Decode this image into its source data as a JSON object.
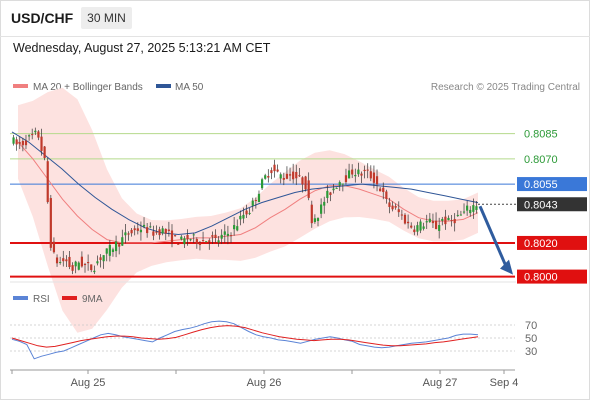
{
  "header": {
    "symbol": "USD/CHF",
    "timeframe": "30 MIN"
  },
  "datetime": "Wednesday, August 27, 2025 5:13:21 AM CET",
  "legend": {
    "ma20": "MA 20 + Bollinger Bands",
    "ma50": "MA 50",
    "credit": "Research © 2025 Trading Central"
  },
  "rsi_legend": {
    "rsi": "RSI",
    "ma": "9MA"
  },
  "colors": {
    "ma20": "#f07f7f",
    "bands_fill": "#fde2e0",
    "ma50": "#2f5697",
    "candle_up": "#2c9a37",
    "candle_down": "#c0392b",
    "resistance": "#b5da8c",
    "pivot": "#3a78d8",
    "support": "#e01010",
    "rsi": "#5b84d6",
    "rsi_ma": "#e02020",
    "arrow": "#2f5c9e"
  },
  "chart_data": {
    "type": "candlestick",
    "ylim": [
      0.7995,
      0.8102
    ],
    "x_ticks": [
      "Aug 25",
      "Aug 26",
      "Aug 27",
      "Sep 4"
    ],
    "levels": [
      {
        "label": "0.8085",
        "value": 0.8085,
        "kind": "resistance"
      },
      {
        "label": "0.8070",
        "value": 0.807,
        "kind": "resistance"
      },
      {
        "label": "0.8055",
        "value": 0.8055,
        "kind": "pivot"
      },
      {
        "label": "0.8043",
        "value": 0.8043,
        "kind": "last"
      },
      {
        "label": "0.8020",
        "value": 0.802,
        "kind": "support"
      },
      {
        "label": "0.8000",
        "value": 0.8,
        "kind": "support"
      }
    ],
    "price_path": [
      0.8082,
      0.8078,
      0.808,
      0.8083,
      0.8085,
      0.8068,
      0.8014,
      0.8008,
      0.801,
      0.8004,
      0.8009,
      0.8006,
      0.8005,
      0.8011,
      0.8014,
      0.8018,
      0.8021,
      0.8025,
      0.8027,
      0.8029,
      0.8028,
      0.8026,
      0.8028,
      0.8025,
      0.8022,
      0.8021,
      0.8023,
      0.8022,
      0.8021,
      0.8023,
      0.8021,
      0.8024,
      0.8026,
      0.8031,
      0.8037,
      0.804,
      0.8049,
      0.8058,
      0.8064,
      0.8061,
      0.8059,
      0.8061,
      0.8058,
      0.8056,
      0.8034,
      0.8038,
      0.8047,
      0.8052,
      0.8057,
      0.8059,
      0.8063,
      0.8061,
      0.8062,
      0.8058,
      0.8052,
      0.8043,
      0.804,
      0.8037,
      0.8031,
      0.8029,
      0.8031,
      0.8033,
      0.8029,
      0.8034,
      0.8032,
      0.8035,
      0.8037,
      0.8041,
      0.8043
    ],
    "ma20": [
      0.808,
      0.807,
      0.8058,
      0.8046,
      0.8036,
      0.8028,
      0.8022,
      0.802,
      0.802,
      0.802,
      0.8021,
      0.8022,
      0.8023,
      0.8023,
      0.8024,
      0.8025,
      0.8029,
      0.8035,
      0.804,
      0.8046,
      0.8051,
      0.8054,
      0.8054,
      0.8052,
      0.8049,
      0.8046,
      0.804,
      0.8035,
      0.8033,
      0.8033,
      0.8034,
      0.8038
    ],
    "ma50": [
      0.8086,
      0.808,
      0.8072,
      0.8064,
      0.8055,
      0.8047,
      0.804,
      0.8034,
      0.8029,
      0.8026,
      0.8025,
      0.8026,
      0.803,
      0.8035,
      0.804,
      0.8044,
      0.8047,
      0.805,
      0.8052,
      0.8053,
      0.8054,
      0.8055,
      0.8054,
      0.8053,
      0.8052,
      0.805,
      0.8048,
      0.8046,
      0.8044
    ],
    "forecast": {
      "from": 0.8043,
      "to": 0.8
    },
    "rsi": {
      "ylim": [
        10,
        90
      ],
      "y_ticks": [
        70,
        50,
        30
      ],
      "rsi_values": [
        48,
        45,
        40,
        18,
        22,
        25,
        28,
        30,
        35,
        40,
        45,
        50,
        55,
        57,
        55,
        52,
        50,
        48,
        46,
        44,
        50,
        55,
        60,
        63,
        65,
        68,
        72,
        75,
        76,
        75,
        72,
        66,
        60,
        55,
        52,
        50,
        47,
        46,
        44,
        42,
        45,
        48,
        50,
        52,
        50,
        47,
        45,
        40,
        38,
        36,
        35,
        36,
        38,
        40,
        42,
        43,
        44,
        46,
        48,
        50,
        54,
        56,
        56,
        55
      ],
      "ma_values": [
        50,
        46,
        42,
        38,
        36,
        37,
        40,
        43,
        46,
        48,
        50,
        52,
        53,
        53,
        52,
        50,
        49,
        48,
        49,
        51,
        55,
        59,
        63,
        66,
        68,
        69,
        68,
        66,
        62,
        58,
        55,
        52,
        50,
        48,
        47,
        46,
        47,
        48,
        48,
        47,
        45,
        43,
        41,
        39,
        38,
        38,
        39,
        40,
        41,
        43,
        44,
        46,
        48,
        50,
        52
      ]
    }
  }
}
